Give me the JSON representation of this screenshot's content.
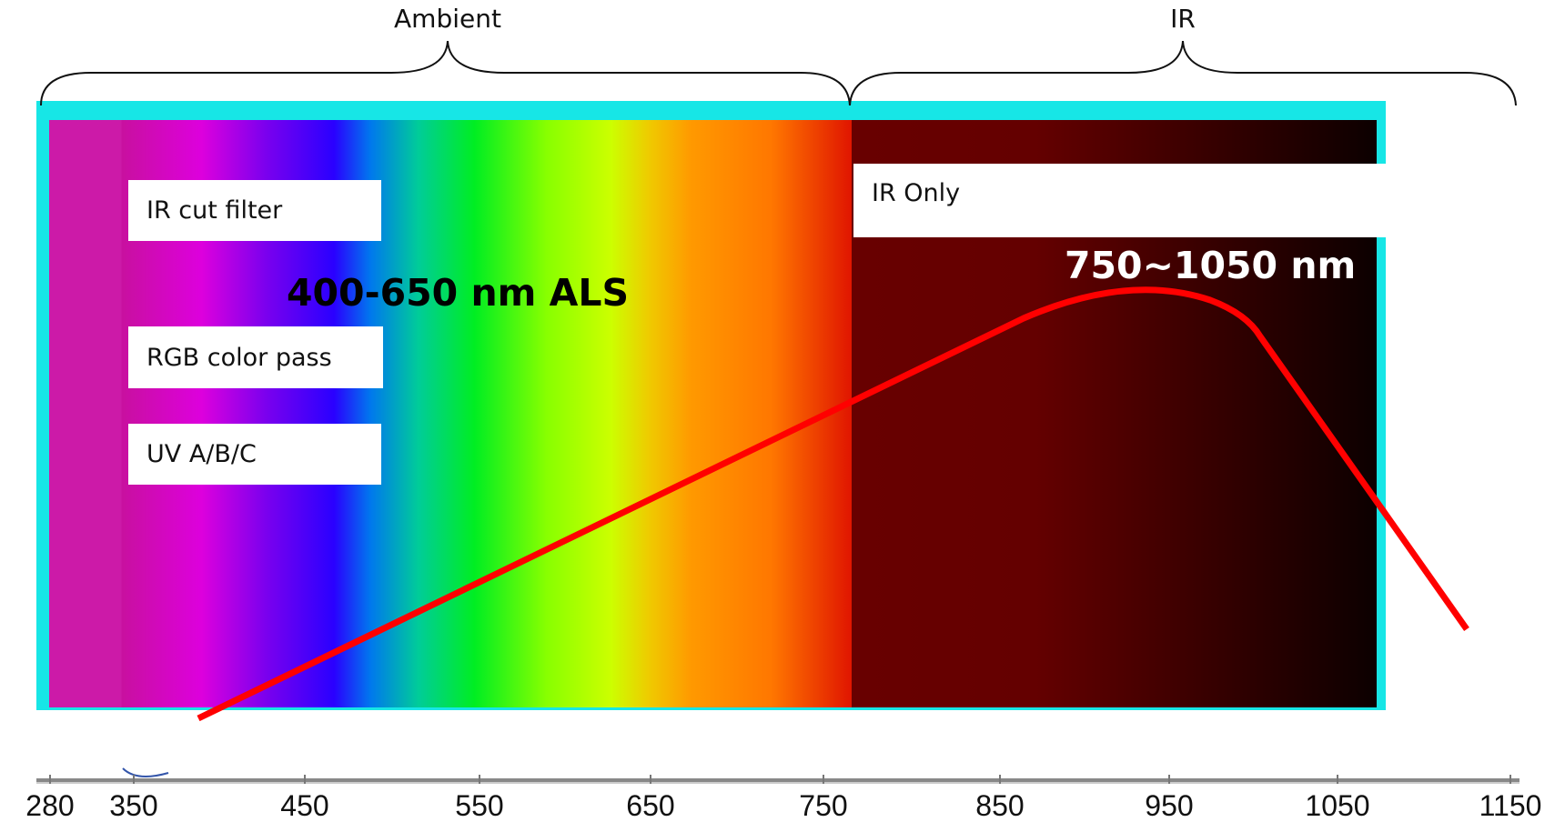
{
  "brace_labels": {
    "ambient": "Ambient",
    "ir": "IR"
  },
  "filter_boxes": {
    "ir_cut_filter": "IR cut filter",
    "rgb_color_pass": "RGB color pass",
    "uv_abc": "UV A/B/C",
    "ir_only": "IR Only"
  },
  "annotations": {
    "als_range": "400-650 nm ALS",
    "ir_range": "750~1050 nm"
  },
  "axis": {
    "ticks": [
      "280",
      "350",
      "450",
      "550",
      "650",
      "750",
      "850",
      "950",
      "1050",
      "1150"
    ]
  },
  "colors": {
    "frame": "#17e6e6",
    "curve": "#ff0000",
    "ir_region": "#660000",
    "als_text": "#000000",
    "ir_text": "#ffffff"
  }
}
